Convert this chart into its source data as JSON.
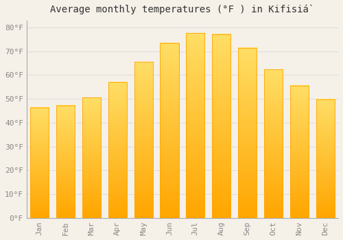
{
  "title": "Average monthly temperatures (°F ) in Kifisiá̀",
  "months": [
    "Jan",
    "Feb",
    "Mar",
    "Apr",
    "May",
    "Jun",
    "Jul",
    "Aug",
    "Sep",
    "Oct",
    "Nov",
    "Dec"
  ],
  "values": [
    46.4,
    47.3,
    50.5,
    57.0,
    65.5,
    73.4,
    77.7,
    77.2,
    71.4,
    62.4,
    55.6,
    49.8
  ],
  "bar_color_top": "#FFD966",
  "bar_color_bottom": "#FFA500",
  "bar_color_edge": "#FFA500",
  "background_color": "#F5F0E8",
  "plot_bg_color": "#F5F0E8",
  "grid_color": "#DDDDDD",
  "ytick_labels": [
    "0°F",
    "10°F",
    "20°F",
    "30°F",
    "40°F",
    "50°F",
    "60°F",
    "70°F",
    "80°F"
  ],
  "ytick_values": [
    0,
    10,
    20,
    30,
    40,
    50,
    60,
    70,
    80
  ],
  "ylim": [
    0,
    83
  ],
  "title_fontsize": 10,
  "tick_fontsize": 8,
  "tick_color": "#888888",
  "title_color": "#333333"
}
